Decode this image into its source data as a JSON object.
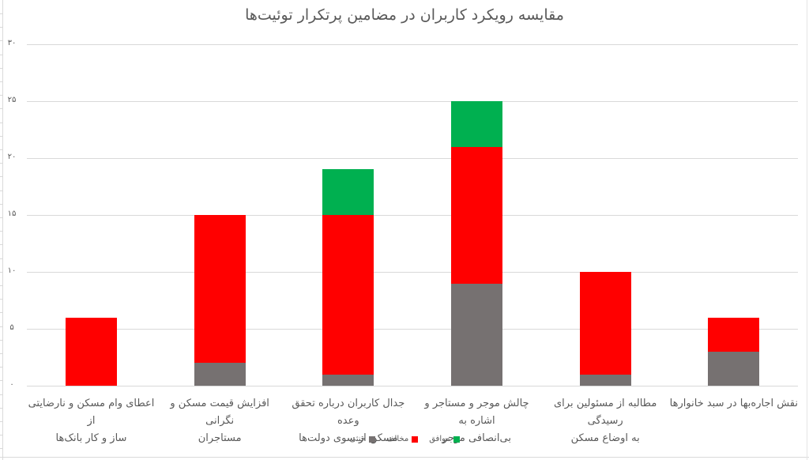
{
  "chart_data": {
    "type": "bar",
    "stacked": true,
    "title": "مقایسه رویکرد کاربران در مضامین پرتکرار توئیت‌ها",
    "xlabel": "",
    "ylabel": "",
    "ylim": [
      0,
      30
    ],
    "yticks": [
      0,
      5,
      10,
      15,
      20,
      25,
      30
    ],
    "ytick_labels": [
      "۰",
      "۵",
      "۱۰",
      "۱۵",
      "۲۰",
      "۲۵",
      "۳۰"
    ],
    "grid": true,
    "legend_position": "bottom",
    "categories": [
      "اعطای وام مسکن و نارضایتی از ساز و کار بانک‌ها",
      "افزایش قیمت مسکن و نگرانی مستاجران",
      "جدال کاربران درباره تحقق وعده مسکن از سوی دولت‌ها",
      "چالش موجر و مستاجر و اشاره به بی‌انصافی موجر",
      "مطالبه از مسئولین برای رسیدگی به اوضاع مسکن",
      "نقش اجاره‌بها در سبد خانوارها"
    ],
    "series": [
      {
        "name": "خنثی",
        "color": "#767171",
        "values": [
          0,
          2,
          1,
          9,
          1,
          3
        ]
      },
      {
        "name": "مخالف",
        "color": "#FF0000",
        "values": [
          6,
          13,
          14,
          12,
          9,
          3
        ]
      },
      {
        "name": "موافق",
        "color": "#00B050",
        "values": [
          0,
          0,
          4,
          4,
          0,
          0
        ]
      }
    ]
  },
  "title": "مقایسه رویکرد کاربران در مضامین پرتکرار توئیت‌ها",
  "axis": {
    "y": [
      "۰",
      "۵",
      "۱۰",
      "۱۵",
      "۲۰",
      "۲۵",
      "۳۰"
    ]
  },
  "categories": [
    {
      "line1": "اعطای وام مسکن و نارضایتی از",
      "line2": "ساز و کار بانک‌ها"
    },
    {
      "line1": "افزایش قیمت مسکن و نگرانی",
      "line2": "مستاجران"
    },
    {
      "line1": "جدال کاربران درباره تحقق وعده",
      "line2": "مسکن از سوی دولت‌ها"
    },
    {
      "line1": "چالش موجر و مستاجر و اشاره به",
      "line2": "بی‌انصافی موجر"
    },
    {
      "line1": "مطالبه از مسئولین برای رسیدگی",
      "line2": "به اوضاع مسکن"
    },
    {
      "line1": "نقش اجاره‌بها در سبد خانوارها",
      "line2": ""
    }
  ],
  "legend": [
    {
      "label": "موافق",
      "color": "#00B050"
    },
    {
      "label": "مخالف",
      "color": "#FF0000"
    },
    {
      "label": "خنثی",
      "color": "#767171"
    }
  ]
}
